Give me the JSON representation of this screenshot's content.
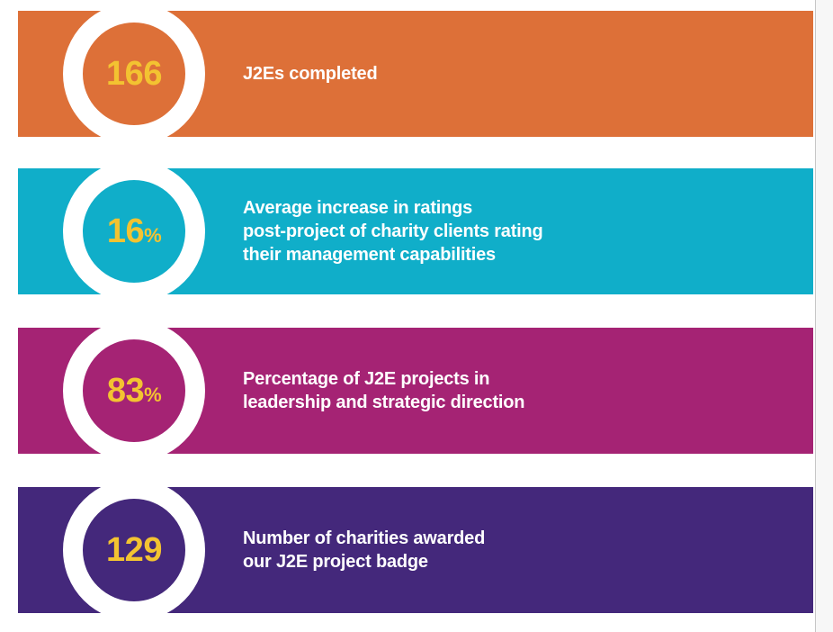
{
  "page": {
    "background": "#ffffff",
    "edge_strip_color": "#f7f7f7"
  },
  "accent": {
    "number_color": "#F3C331",
    "ring_color": "#ffffff",
    "label_color": "#ffffff"
  },
  "stats": [
    {
      "value": "166",
      "suffix": "",
      "label": "J2Es completed",
      "color": "#DD7038"
    },
    {
      "value": "16",
      "suffix": "%",
      "label": "Average increase in ratings\npost-project of charity clients rating\ntheir management capabilities",
      "color": "#10AEC9"
    },
    {
      "value": "83",
      "suffix": "%",
      "label": "Percentage of J2E projects in\nleadership and strategic direction",
      "color": "#A52374"
    },
    {
      "value": "129",
      "suffix": "",
      "label": "Number of charities awarded\nour J2E project badge",
      "color": "#44287B"
    }
  ],
  "chart_data": {
    "type": "table",
    "title": "J2E project impact statistics",
    "categories": [
      "J2Es completed",
      "Average increase in ratings post-project of charity clients rating their management capabilities",
      "Percentage of J2E projects in leadership and strategic direction",
      "Number of charities awarded our J2E project badge"
    ],
    "values": [
      166,
      16,
      83,
      129
    ],
    "units": [
      "",
      "%",
      "%",
      ""
    ],
    "colors": [
      "#DD7038",
      "#10AEC9",
      "#A52374",
      "#44287B"
    ]
  }
}
